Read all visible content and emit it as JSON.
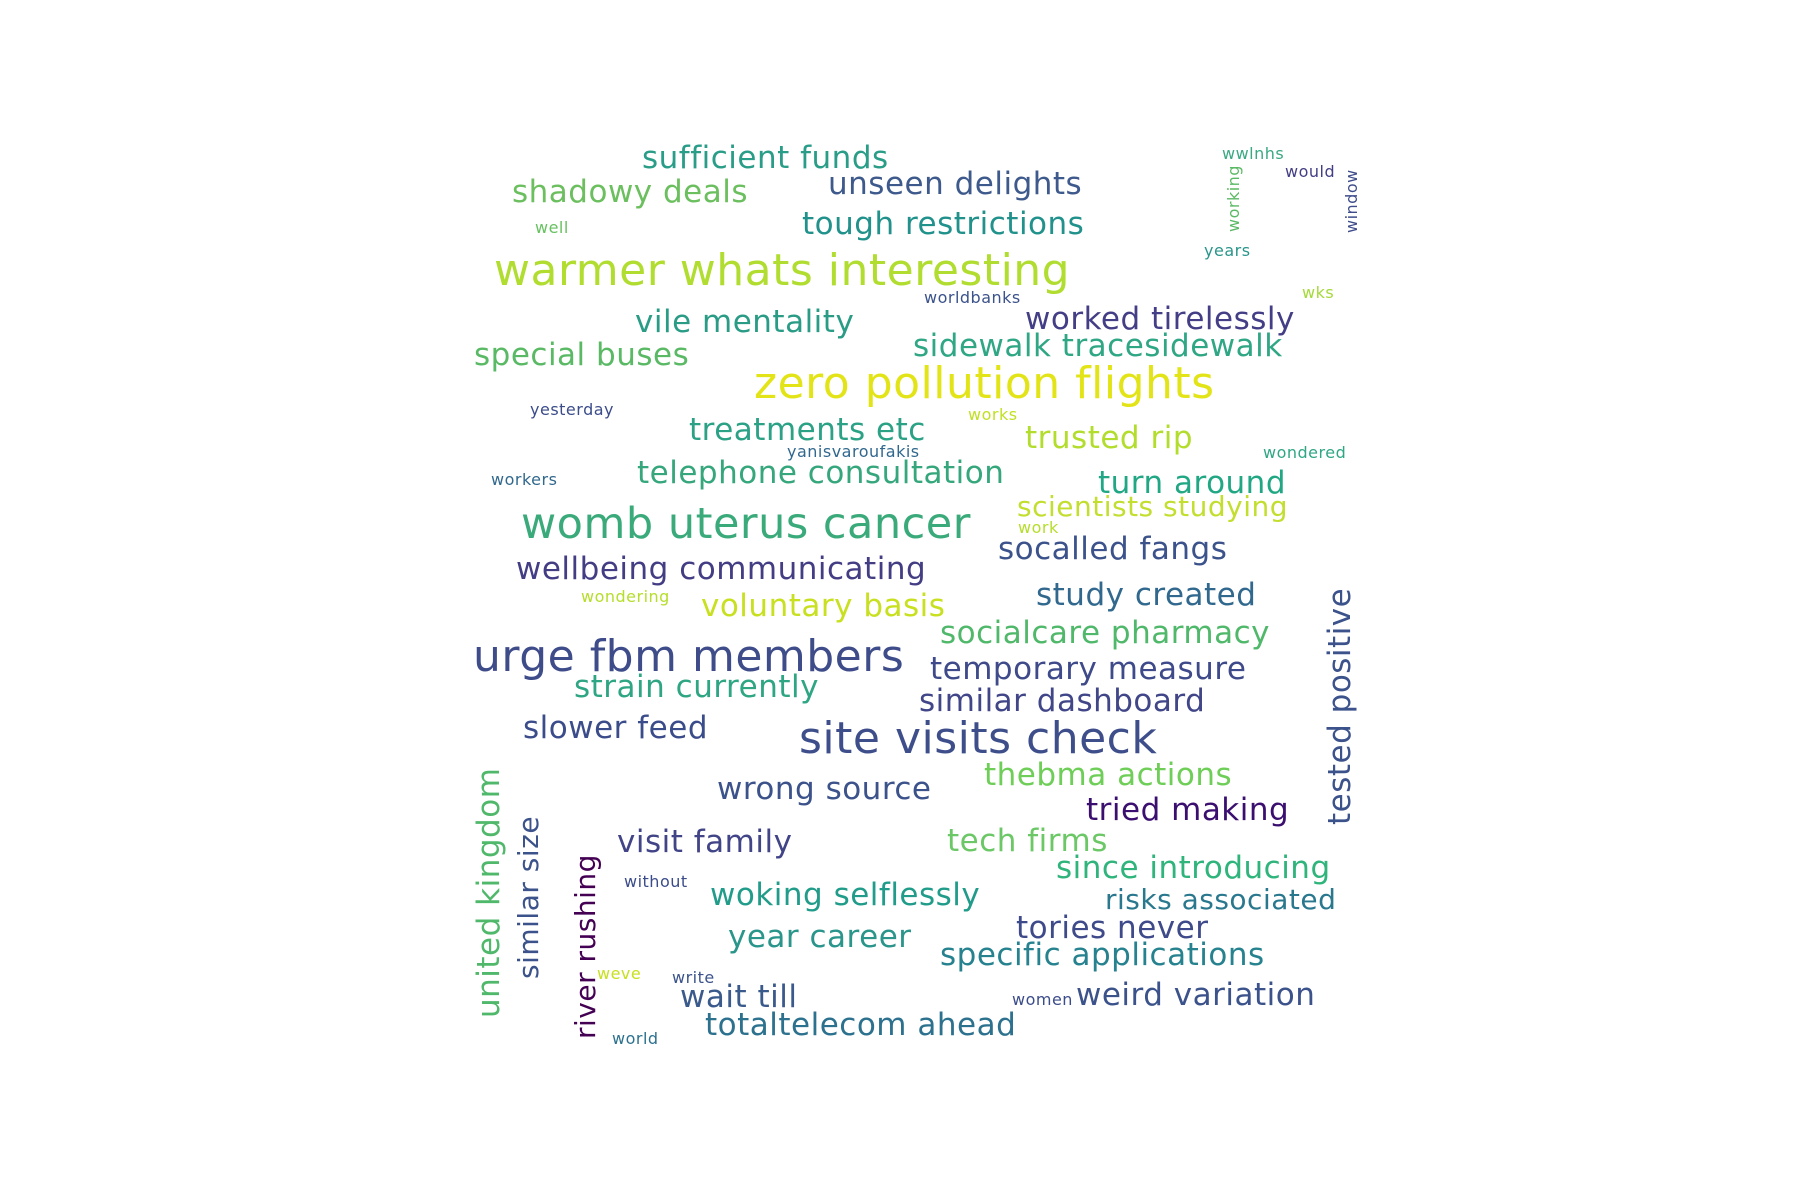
{
  "words": [
    {
      "text": "zero pollution flights",
      "color": "#e3e418"
    },
    {
      "text": "warmer whats interesting",
      "color": "#b0dd2f"
    },
    {
      "text": "womb uterus cancer",
      "color": "#3aaa7a"
    },
    {
      "text": "urge fbm members",
      "color": "#3e4c8a"
    },
    {
      "text": "site visits check",
      "color": "#3d4e8a"
    },
    {
      "text": "sufficient funds",
      "color": "#2a9d88"
    },
    {
      "text": "shadowy deals",
      "color": "#6cbf5e"
    },
    {
      "text": "unseen delights",
      "color": "#3e5a8c"
    },
    {
      "text": "tough restrictions",
      "color": "#21918c"
    },
    {
      "text": "vile mentality",
      "color": "#2a9c86"
    },
    {
      "text": "worked tirelessly",
      "color": "#433e85"
    },
    {
      "text": "sidewalk tracesidewalk",
      "color": "#2fa684"
    },
    {
      "text": "special buses",
      "color": "#5ab964"
    },
    {
      "text": "treatments etc",
      "color": "#2ba186"
    },
    {
      "text": "trusted rip",
      "color": "#b2dd2d"
    },
    {
      "text": "telephone consultation",
      "color": "#36a77c"
    },
    {
      "text": "turn around",
      "color": "#22a785"
    },
    {
      "text": "scientists studying",
      "color": "#c4de30"
    },
    {
      "text": "socalled fangs",
      "color": "#3b528b"
    },
    {
      "text": "wellbeing communicating",
      "color": "#433d84"
    },
    {
      "text": "voluntary basis",
      "color": "#c8e020"
    },
    {
      "text": "study created",
      "color": "#31688e"
    },
    {
      "text": "socialcare pharmacy",
      "color": "#50b86a"
    },
    {
      "text": "temporary measure",
      "color": "#3e4a89"
    },
    {
      "text": "strain currently",
      "color": "#2ea583"
    },
    {
      "text": "similar dashboard",
      "color": "#404688"
    },
    {
      "text": "slower feed",
      "color": "#3b4c8a"
    },
    {
      "text": "thebma actions",
      "color": "#6ece58"
    },
    {
      "text": "wrong source",
      "color": "#3b528b"
    },
    {
      "text": "tried making",
      "color": "#3b0f6f"
    },
    {
      "text": "visit family",
      "color": "#414487"
    },
    {
      "text": "tech firms",
      "color": "#6cc866"
    },
    {
      "text": "since introducing",
      "color": "#2fb47c"
    },
    {
      "text": "woking selflessly",
      "color": "#229c8a"
    },
    {
      "text": "risks associated",
      "color": "#2a788e"
    },
    {
      "text": "tories never",
      "color": "#3e4a89"
    },
    {
      "text": "year career",
      "color": "#2a958b"
    },
    {
      "text": "specific applications",
      "color": "#26828e"
    },
    {
      "text": "wait till",
      "color": "#3b5a8c"
    },
    {
      "text": "weird variation",
      "color": "#3b528b"
    },
    {
      "text": "totaltelecom ahead",
      "color": "#2c718e"
    },
    {
      "text": "tested positive",
      "color": "#3b528b"
    },
    {
      "text": "united kingdom",
      "color": "#50b86a"
    },
    {
      "text": "similar size",
      "color": "#3b528b"
    },
    {
      "text": "river rushing",
      "color": "#440154"
    },
    {
      "text": "wwlnhs",
      "color": "#3aa982"
    },
    {
      "text": "would",
      "color": "#433e85"
    },
    {
      "text": "working",
      "color": "#5ab964"
    },
    {
      "text": "window",
      "color": "#3e4c8a"
    },
    {
      "text": "well",
      "color": "#67c160"
    },
    {
      "text": "years",
      "color": "#2a958b"
    },
    {
      "text": "wks",
      "color": "#a5d93a"
    },
    {
      "text": "worldbanks",
      "color": "#3b528b"
    },
    {
      "text": "yesterday",
      "color": "#3b4c8a"
    },
    {
      "text": "works",
      "color": "#c2df23"
    },
    {
      "text": "yanisvaroufakis",
      "color": "#31688e"
    },
    {
      "text": "wondered",
      "color": "#2fa684"
    },
    {
      "text": "workers",
      "color": "#31688e"
    },
    {
      "text": "work",
      "color": "#b5de2b"
    },
    {
      "text": "wondering",
      "color": "#b5de2b"
    },
    {
      "text": "without",
      "color": "#3b4c8a"
    },
    {
      "text": "weve",
      "color": "#c8e020"
    },
    {
      "text": "write",
      "color": "#3b528b"
    },
    {
      "text": "women",
      "color": "#3b4c8a"
    },
    {
      "text": "world",
      "color": "#2c718e"
    }
  ]
}
